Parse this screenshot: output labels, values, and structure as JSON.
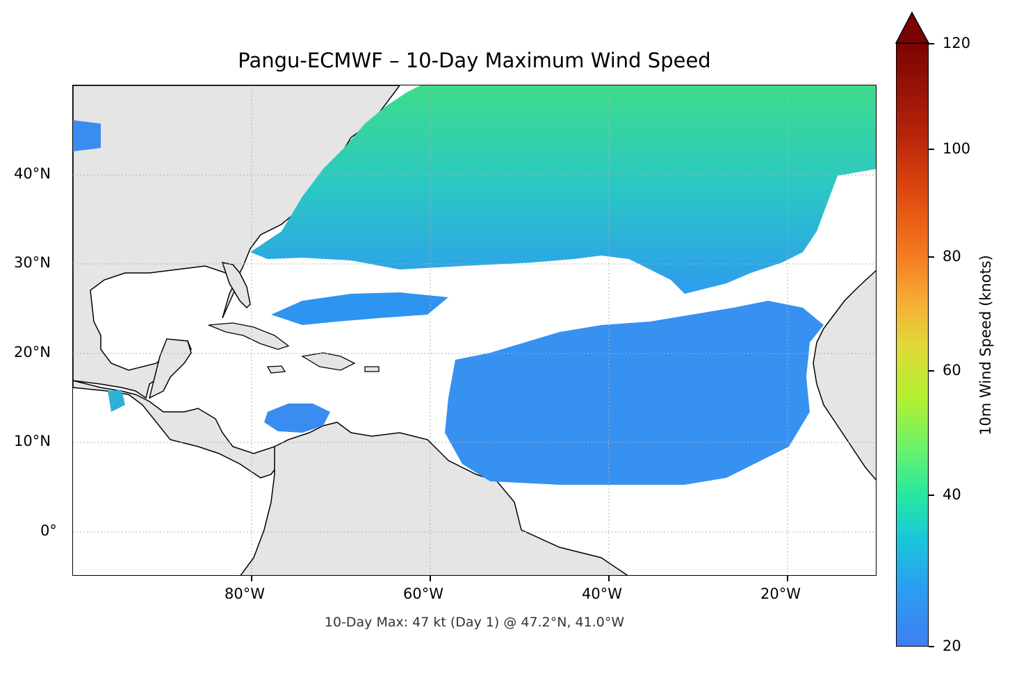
{
  "title": "Pangu-ECMWF – 10-Day Maximum Wind Speed",
  "subtitle": "10-Day Max: 47 kt (Day 1) @ 47.2°N, 41.0°W",
  "map": {
    "lon_range": [
      -100,
      -10
    ],
    "lat_range": [
      -5,
      50
    ],
    "lon_ticks": [
      "80°W",
      "60°W",
      "40°W",
      "20°W"
    ],
    "lat_ticks": [
      "40°N",
      "30°N",
      "20°N",
      "10°N",
      "0°"
    ],
    "land_color": "#e5e5e5",
    "gridlines": true
  },
  "colorbar": {
    "label": "10m Wind Speed (knots)",
    "ticks": [
      "120",
      "100",
      "80",
      "60",
      "40",
      "20"
    ],
    "range": [
      20,
      120
    ],
    "extend": "max",
    "colormap": "turbo"
  },
  "wind_field": {
    "max_kt": 47,
    "max_day": 1,
    "max_lat": 47.2,
    "max_lon": -41.0
  }
}
